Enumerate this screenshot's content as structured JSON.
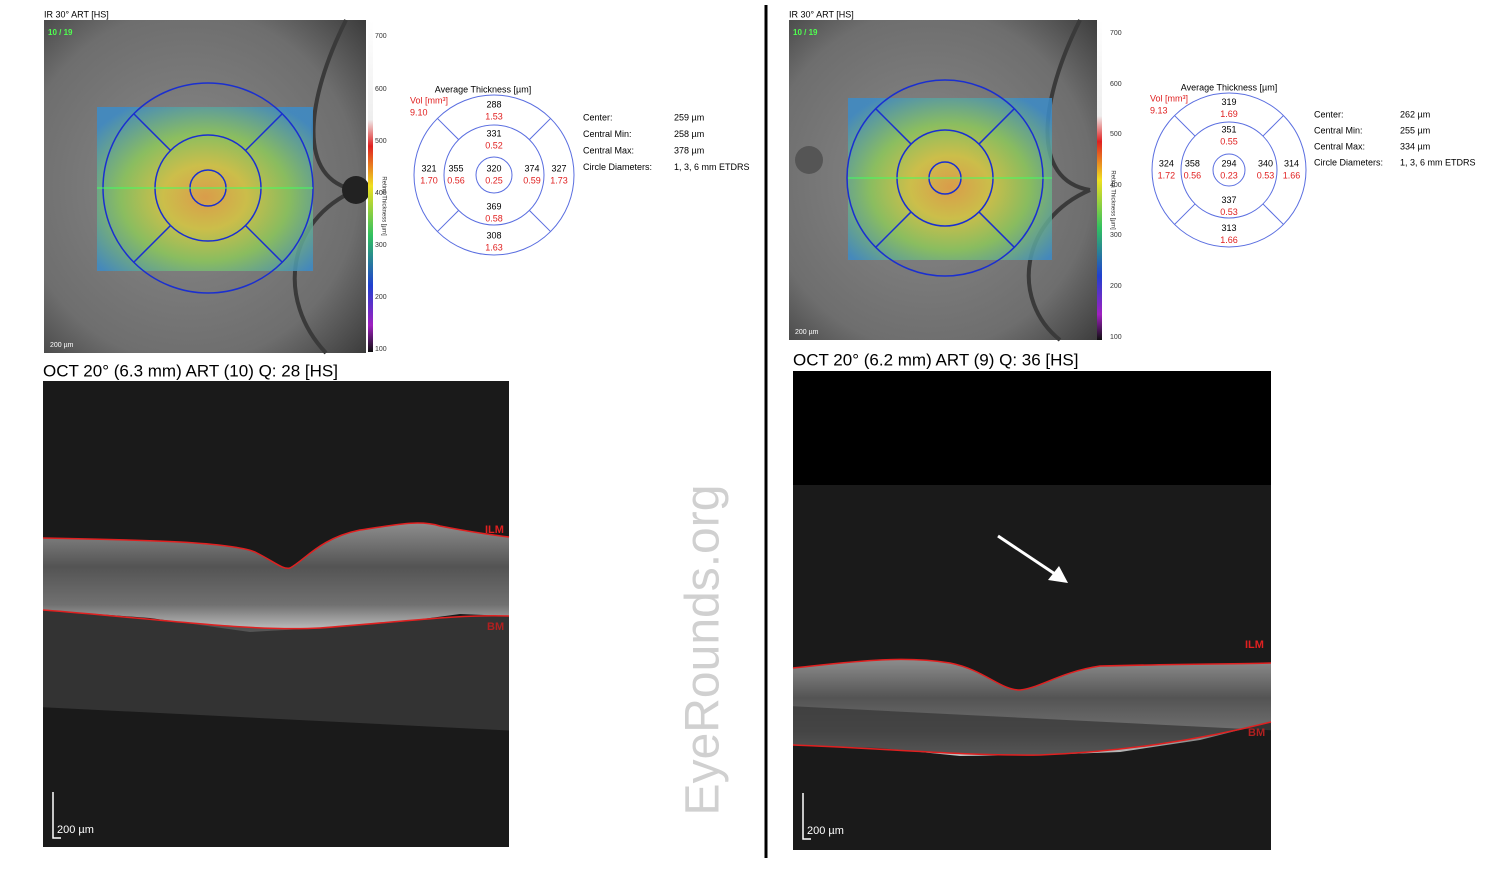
{
  "panels": [
    {
      "ir_label": "IR 30° ART [HS]",
      "frame": "10 / 19",
      "colorbar_ticks": [
        "700",
        "600",
        "500",
        "400",
        "300",
        "200",
        "100"
      ],
      "colorbar_label": "Retina Thickness [µm]",
      "ir_scale": "200 µm",
      "thickness_title": "Average Thickness [µm]",
      "vol_label": "Vol [mm³]",
      "vol_total": "9.10",
      "sectors": [
        {
          "thickness": "288",
          "volume": "1.53"
        },
        {
          "thickness": "331",
          "volume": "0.52"
        },
        {
          "thickness": "321",
          "volume": "1.70"
        },
        {
          "thickness": "355",
          "volume": "0.56"
        },
        {
          "thickness": "320",
          "volume": "0.25"
        },
        {
          "thickness": "374",
          "volume": "0.59"
        },
        {
          "thickness": "327",
          "volume": "1.73"
        },
        {
          "thickness": "369",
          "volume": "0.58"
        },
        {
          "thickness": "308",
          "volume": "1.63"
        }
      ],
      "stats": [
        {
          "label": "Center:",
          "value": "259 µm"
        },
        {
          "label": "Central Min:",
          "value": "258 µm"
        },
        {
          "label": "Central Max:",
          "value": "378 µm"
        },
        {
          "label": "Circle Diameters:",
          "value": "1, 3, 6 mm ETDRS"
        }
      ],
      "oct_title": "OCT 20° (6.3 mm) ART (10) Q: 28 [HS]",
      "ilm": "ILM",
      "bm": "BM",
      "oct_scale": "200 µm"
    },
    {
      "ir_label": "IR 30° ART [HS]",
      "frame": "10 / 19",
      "colorbar_ticks": [
        "700",
        "600",
        "500",
        "400",
        "300",
        "200",
        "100"
      ],
      "colorbar_label": "Retina Thickness [µm]",
      "ir_scale": "200 µm",
      "thickness_title": "Average Thickness [µm]",
      "vol_label": "Vol [mm³]",
      "vol_total": "9.13",
      "sectors": [
        {
          "thickness": "319",
          "volume": "1.69"
        },
        {
          "thickness": "351",
          "volume": "0.55"
        },
        {
          "thickness": "324",
          "volume": "1.72"
        },
        {
          "thickness": "358",
          "volume": "0.56"
        },
        {
          "thickness": "294",
          "volume": "0.23"
        },
        {
          "thickness": "340",
          "volume": "0.53"
        },
        {
          "thickness": "314",
          "volume": "1.66"
        },
        {
          "thickness": "337",
          "volume": "0.53"
        },
        {
          "thickness": "313",
          "volume": "1.66"
        }
      ],
      "stats": [
        {
          "label": "Center:",
          "value": "262 µm"
        },
        {
          "label": "Central Min:",
          "value": "255 µm"
        },
        {
          "label": "Central Max:",
          "value": "334 µm"
        },
        {
          "label": "Circle Diameters:",
          "value": "1, 3, 6 mm ETDRS"
        }
      ],
      "oct_title": "OCT 20° (6.2 mm) ART (9) Q: 36 [HS]",
      "ilm": "ILM",
      "bm": "BM",
      "oct_scale": "200 µm"
    }
  ],
  "watermark": "EyeRounds.org"
}
